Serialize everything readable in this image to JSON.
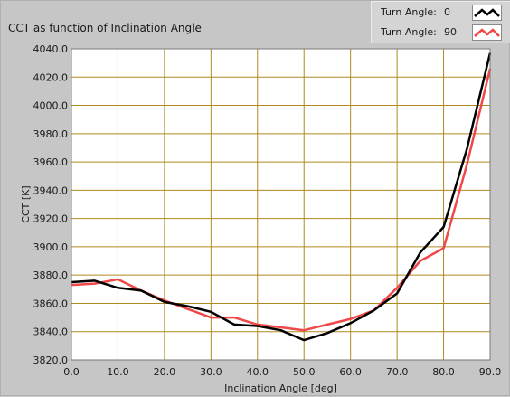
{
  "chart_data": {
    "type": "line",
    "title": "CCT as function of Inclination Angle",
    "xlabel": "Inclination Angle [deg]",
    "ylabel": "CCT [K]",
    "xlim": [
      0,
      90
    ],
    "ylim": [
      3820,
      4040
    ],
    "x_ticks": [
      "0.0",
      "10.0",
      "20.0",
      "30.0",
      "40.0",
      "50.0",
      "60.0",
      "70.0",
      "80.0",
      "90.0"
    ],
    "y_ticks": [
      "3820.0",
      "3840.0",
      "3860.0",
      "3880.0",
      "3900.0",
      "3920.0",
      "3940.0",
      "3960.0",
      "3980.0",
      "4000.0",
      "4020.0",
      "4040.0"
    ],
    "grid": true,
    "legend_position": "top-right",
    "x": [
      0,
      5,
      10,
      15,
      20,
      25,
      30,
      35,
      40,
      45,
      50,
      55,
      60,
      65,
      70,
      75,
      80,
      85,
      90
    ],
    "series": [
      {
        "name": "Turn Angle:",
        "legend_value": "0",
        "color": "#000000",
        "values": [
          3875,
          3876,
          3871,
          3869,
          3861,
          3858,
          3854,
          3845,
          3844,
          3841,
          3834,
          3839,
          3846,
          3855,
          3867,
          3896,
          3914,
          3969,
          4037
        ]
      },
      {
        "name": "Turn Angle:",
        "legend_value": "90",
        "color": "#f04848",
        "values": [
          3873,
          3874,
          3877,
          3869,
          3862,
          3856,
          3850,
          3850,
          3845,
          3843,
          3841,
          3845,
          3849,
          3855,
          3871,
          3890,
          3899,
          3958,
          4026
        ]
      }
    ],
    "plot_background": "#ffffff",
    "grid_color": "#b08a1e"
  }
}
